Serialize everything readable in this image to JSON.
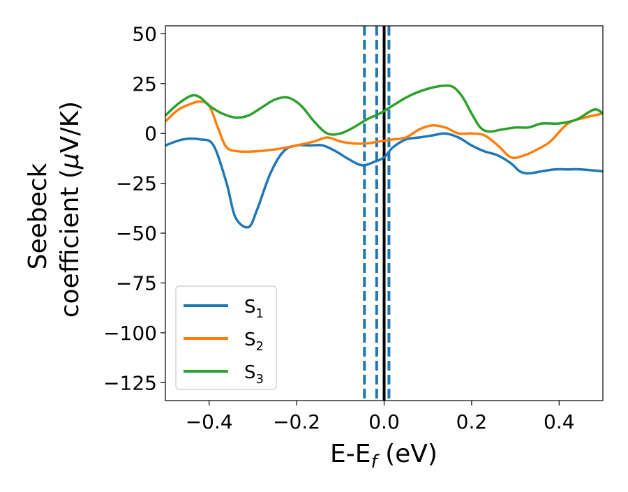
{
  "chart_data": {
    "type": "line",
    "xlabel": "E-E",
    "xlabel_sub": "f",
    "xlabel_unit": " (eV)",
    "ylabel_line1": "Seebeck",
    "ylabel_line2_prefix": "coefficient  (",
    "ylabel_mu": "μ",
    "ylabel_line2_suffix": "V/K)",
    "xlim": [
      -0.5,
      0.5
    ],
    "ylim": [
      -134,
      54
    ],
    "x_ticks": [
      -0.4,
      -0.2,
      0.0,
      0.2,
      0.4
    ],
    "x_tick_labels": [
      "−0.4",
      "−0.2",
      "0.0",
      "0.2",
      "0.4"
    ],
    "y_ticks": [
      50,
      25,
      0,
      -25,
      -50,
      -75,
      -100,
      -125
    ],
    "y_tick_labels": [
      "50",
      "25",
      "0",
      "−25",
      "−50",
      "−75",
      "−100",
      "−125"
    ],
    "grid": false,
    "legend_position": "lower-left",
    "vertical_lines": [
      {
        "x": -0.045,
        "style": "dashed",
        "color": "#1f77b4"
      },
      {
        "x": -0.017,
        "style": "dashed",
        "color": "#1f77b4"
      },
      {
        "x": 0.011,
        "style": "dashed",
        "color": "#1f77b4"
      },
      {
        "x": 0.0,
        "style": "solid",
        "color": "#000000"
      }
    ],
    "series": [
      {
        "name": "S",
        "subscript": "1",
        "color": "#1f77b4",
        "x": [
          -0.5,
          -0.46,
          -0.42,
          -0.39,
          -0.36,
          -0.34,
          -0.31,
          -0.29,
          -0.26,
          -0.23,
          -0.2,
          -0.17,
          -0.14,
          -0.11,
          -0.08,
          -0.05,
          -0.02,
          0.0,
          0.02,
          0.05,
          0.08,
          0.11,
          0.14,
          0.17,
          0.2,
          0.23,
          0.26,
          0.29,
          0.31,
          0.33,
          0.36,
          0.39,
          0.42,
          0.45,
          0.5
        ],
        "y": [
          -6,
          -3,
          -3,
          -6,
          -25,
          -42,
          -47,
          -38,
          -20,
          -9,
          -6,
          -6,
          -6,
          -9,
          -13,
          -16,
          -14,
          -12,
          -7,
          -3,
          -2,
          -1,
          0,
          -2,
          -6,
          -9,
          -11,
          -15,
          -19,
          -20,
          -19,
          -18,
          -18,
          -18,
          -19
        ]
      },
      {
        "name": "S",
        "subscript": "2",
        "color": "#ff7f0e",
        "x": [
          -0.5,
          -0.47,
          -0.44,
          -0.42,
          -0.4,
          -0.38,
          -0.36,
          -0.33,
          -0.3,
          -0.25,
          -0.2,
          -0.16,
          -0.13,
          -0.1,
          -0.07,
          -0.04,
          -0.01,
          0.02,
          0.05,
          0.08,
          0.11,
          0.14,
          0.17,
          0.2,
          0.23,
          0.26,
          0.29,
          0.32,
          0.35,
          0.38,
          0.42,
          0.46,
          0.5
        ],
        "y": [
          6,
          12,
          15,
          16,
          14,
          3,
          -7,
          -9,
          -9,
          -8,
          -6,
          -4,
          -2,
          -4,
          -5,
          -5,
          -4,
          -3,
          -2,
          2,
          4,
          3,
          0,
          0,
          -1,
          -6,
          -12,
          -11,
          -8,
          -4,
          5,
          8,
          10
        ]
      },
      {
        "name": "S",
        "subscript": "3",
        "color": "#2ca02c",
        "x": [
          -0.5,
          -0.47,
          -0.44,
          -0.42,
          -0.4,
          -0.37,
          -0.34,
          -0.31,
          -0.28,
          -0.25,
          -0.22,
          -0.19,
          -0.16,
          -0.13,
          -0.1,
          -0.07,
          -0.04,
          -0.01,
          0.02,
          0.05,
          0.08,
          0.11,
          0.14,
          0.16,
          0.18,
          0.2,
          0.22,
          0.24,
          0.27,
          0.3,
          0.33,
          0.36,
          0.4,
          0.44,
          0.48,
          0.5
        ],
        "y": [
          9,
          15,
          19,
          18,
          14,
          10,
          8,
          9,
          13,
          17,
          18,
          14,
          6,
          0,
          0,
          3,
          7,
          10,
          14,
          18,
          21,
          23,
          24,
          23,
          18,
          10,
          3,
          1,
          2,
          3,
          3,
          5,
          5,
          7,
          12,
          10
        ]
      }
    ]
  }
}
